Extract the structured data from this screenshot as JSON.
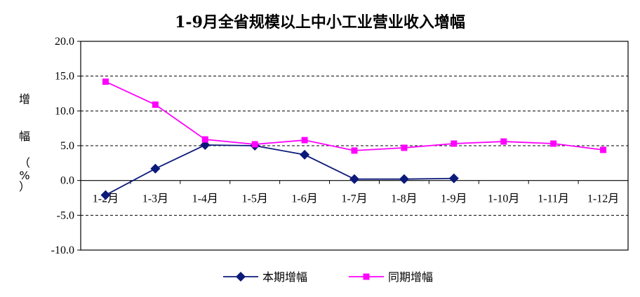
{
  "chart_data": {
    "type": "line",
    "title": "1-9月全省规模以上中小工业营业收入增幅",
    "ylabel_chars": [
      "增",
      "幅",
      "（",
      "%",
      "）"
    ],
    "categories": [
      "1-2月",
      "1-3月",
      "1-4月",
      "1-5月",
      "1-6月",
      "1-7月",
      "1-8月",
      "1-9月",
      "1-10月",
      "1-11月",
      "1-12月"
    ],
    "ylim": [
      -10,
      20
    ],
    "yticks": [
      "20.0",
      "15.0",
      "10.0",
      "5.0",
      "0.0",
      "-5.0",
      "-10.0"
    ],
    "grid": "dashed horizontal at 15, 10, 5, -5",
    "legend_position": "bottom",
    "series": [
      {
        "name": "本期增幅",
        "color": "#0c1a7a",
        "marker": "diamond",
        "values": [
          -2.1,
          1.7,
          5.1,
          5.0,
          3.7,
          0.2,
          0.2,
          0.3,
          null,
          null,
          null
        ]
      },
      {
        "name": "同期增幅",
        "color": "#ff00ff",
        "marker": "square",
        "values": [
          14.2,
          10.9,
          5.9,
          5.2,
          5.8,
          4.3,
          4.7,
          5.3,
          5.6,
          5.3,
          4.4
        ]
      }
    ]
  }
}
